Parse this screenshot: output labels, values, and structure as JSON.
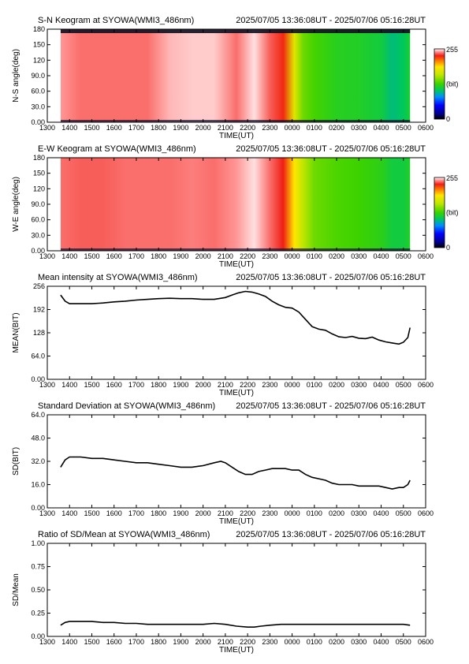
{
  "chart_data": [
    {
      "type": "heatmap",
      "title": "S-N Keogram at SYOWA(WMI3_486nm)",
      "time_range": "2025/07/05 13:36:08UT - 2025/07/06 05:16:28UT",
      "xlabel": "TIME(UT)",
      "ylabel": "N-S angle(deg)",
      "x_ticks": [
        "1300",
        "1400",
        "1500",
        "1600",
        "1700",
        "1800",
        "1900",
        "2000",
        "2100",
        "2200",
        "2300",
        "0000",
        "0100",
        "0200",
        "0300",
        "0400",
        "0500",
        "0600"
      ],
      "y_ticks": [
        "0.00",
        "30.0",
        "60.0",
        "90.0",
        "120",
        "150",
        "180"
      ],
      "ylim": [
        0,
        180
      ],
      "colorbar": {
        "max": "255",
        "unit": "(bit)",
        "min": "0"
      },
      "columns": [
        {
          "t": 13.6,
          "v": 245
        },
        {
          "t": 14.5,
          "v": 240
        },
        {
          "t": 15.5,
          "v": 240
        },
        {
          "t": 16.5,
          "v": 240
        },
        {
          "t": 17.5,
          "v": 240
        },
        {
          "t": 18.5,
          "v": 248
        },
        {
          "t": 19.5,
          "v": 250
        },
        {
          "t": 20.5,
          "v": 250
        },
        {
          "t": 21.5,
          "v": 240
        },
        {
          "t": 22.3,
          "v": 252
        },
        {
          "t": 23.0,
          "v": 238
        },
        {
          "t": 23.6,
          "v": 228
        },
        {
          "t": 24.1,
          "v": 175
        },
        {
          "t": 24.5,
          "v": 140
        },
        {
          "t": 25.0,
          "v": 130
        },
        {
          "t": 26.0,
          "v": 120
        },
        {
          "t": 27.0,
          "v": 118
        },
        {
          "t": 28.0,
          "v": 112
        },
        {
          "t": 28.5,
          "v": 100
        },
        {
          "t": 29.0,
          "v": 105
        },
        {
          "t": 29.3,
          "v": 115
        }
      ]
    },
    {
      "type": "heatmap",
      "title": "E-W Keogram at SYOWA(WMI3_486nm)",
      "time_range": "2025/07/05 13:36:08UT - 2025/07/06 05:16:28UT",
      "xlabel": "TIME(UT)",
      "ylabel": "W-E angle(deg)",
      "x_ticks": [
        "1300",
        "1400",
        "1500",
        "1600",
        "1700",
        "1800",
        "1900",
        "2000",
        "2100",
        "2200",
        "2300",
        "0000",
        "0100",
        "0200",
        "0300",
        "0400",
        "0500",
        "0600"
      ],
      "y_ticks": [
        "0.00",
        "30.0",
        "60.0",
        "90.0",
        "120",
        "150",
        "180"
      ],
      "ylim": [
        0,
        180
      ],
      "colorbar": {
        "max": "255",
        "unit": "(bit)",
        "min": "0"
      },
      "columns": [
        {
          "t": 13.6,
          "v": 240
        },
        {
          "t": 14.5,
          "v": 238
        },
        {
          "t": 15.5,
          "v": 238
        },
        {
          "t": 16.5,
          "v": 240
        },
        {
          "t": 17.5,
          "v": 240
        },
        {
          "t": 18.5,
          "v": 240
        },
        {
          "t": 19.5,
          "v": 242
        },
        {
          "t": 20.5,
          "v": 240
        },
        {
          "t": 21.5,
          "v": 245
        },
        {
          "t": 22.3,
          "v": 252
        },
        {
          "t": 23.0,
          "v": 240
        },
        {
          "t": 23.6,
          "v": 230
        },
        {
          "t": 24.1,
          "v": 190
        },
        {
          "t": 24.5,
          "v": 160
        },
        {
          "t": 25.0,
          "v": 140
        },
        {
          "t": 26.0,
          "v": 132
        },
        {
          "t": 27.0,
          "v": 128
        },
        {
          "t": 28.0,
          "v": 122
        },
        {
          "t": 28.5,
          "v": 112
        },
        {
          "t": 29.0,
          "v": 112
        },
        {
          "t": 29.3,
          "v": 118
        }
      ]
    },
    {
      "type": "line",
      "title": "Mean intensity at SYOWA(WMI3_486nm)",
      "time_range": "2025/07/05 13:36:08UT - 2025/07/06 05:16:28UT",
      "xlabel": "TIME(UT)",
      "ylabel": "MEAN(BIT)",
      "x_ticks": [
        "1300",
        "1400",
        "1500",
        "1600",
        "1700",
        "1800",
        "1900",
        "2000",
        "2100",
        "2200",
        "2300",
        "0000",
        "0100",
        "0200",
        "0300",
        "0400",
        "0500",
        "0600"
      ],
      "y_ticks": [
        "0.00",
        "64.0",
        "128",
        "192",
        "256"
      ],
      "ylim": [
        0,
        256
      ],
      "series": [
        {
          "x": [
            13.6,
            13.8,
            14.0,
            14.5,
            15.0,
            15.5,
            16.0,
            16.5,
            17.0,
            17.5,
            18.0,
            18.5,
            19.0,
            19.5,
            20.0,
            20.5,
            21.0,
            21.3,
            21.6,
            21.9,
            22.2,
            22.5,
            22.8,
            23.1,
            23.4,
            23.7,
            24.0,
            24.3,
            24.6,
            24.9,
            25.2,
            25.5,
            25.8,
            26.1,
            26.4,
            26.7,
            27.0,
            27.3,
            27.6,
            27.9,
            28.2,
            28.5,
            28.8,
            29.0,
            29.2,
            29.3
          ],
          "y": [
            232,
            215,
            208,
            208,
            208,
            210,
            213,
            215,
            218,
            220,
            222,
            223,
            222,
            222,
            220,
            220,
            225,
            232,
            238,
            242,
            240,
            235,
            228,
            215,
            205,
            198,
            196,
            185,
            165,
            145,
            138,
            135,
            125,
            117,
            115,
            118,
            113,
            112,
            116,
            108,
            103,
            100,
            97,
            102,
            115,
            142
          ]
        }
      ]
    },
    {
      "type": "line",
      "title": "Standard Deviation at SYOWA(WMI3_486nm)",
      "time_range": "2025/07/05 13:36:08UT - 2025/07/06 05:16:28UT",
      "xlabel": "TIME(UT)",
      "ylabel": "SD(BIT)",
      "x_ticks": [
        "1300",
        "1400",
        "1500",
        "1600",
        "1700",
        "1800",
        "1900",
        "2000",
        "2100",
        "2200",
        "2300",
        "0000",
        "0100",
        "0200",
        "0300",
        "0400",
        "0500",
        "0600"
      ],
      "y_ticks": [
        "0.00",
        "16.0",
        "32.0",
        "48.0",
        "64.0"
      ],
      "ylim": [
        0,
        64
      ],
      "series": [
        {
          "x": [
            13.6,
            13.8,
            14.0,
            14.5,
            15.0,
            15.5,
            16.0,
            16.5,
            17.0,
            17.5,
            18.0,
            18.5,
            19.0,
            19.5,
            20.0,
            20.5,
            20.8,
            21.0,
            21.3,
            21.6,
            21.9,
            22.2,
            22.5,
            22.8,
            23.1,
            23.4,
            23.7,
            24.0,
            24.3,
            24.6,
            24.9,
            25.2,
            25.5,
            25.8,
            26.1,
            26.4,
            26.7,
            27.0,
            27.3,
            27.6,
            27.9,
            28.2,
            28.5,
            28.8,
            29.0,
            29.2,
            29.3
          ],
          "y": [
            28,
            33,
            35,
            35,
            34,
            34,
            33,
            32,
            31,
            31,
            30,
            29,
            28,
            28,
            29,
            31,
            32,
            31,
            28,
            25,
            23,
            23,
            25,
            26,
            27,
            27,
            27,
            26,
            26,
            23,
            21,
            20,
            19,
            17,
            16,
            16,
            16,
            15,
            15,
            15,
            15,
            14,
            13,
            14,
            14,
            16,
            19
          ]
        }
      ]
    },
    {
      "type": "line",
      "title": "Ratio of SD/Mean at SYOWA(WMI3_486nm)",
      "time_range": "2025/07/05 13:36:08UT - 2025/07/06 05:16:28UT",
      "xlabel": "TIME(UT)",
      "ylabel": "SD/Mean",
      "x_ticks": [
        "1300",
        "1400",
        "1500",
        "1600",
        "1700",
        "1800",
        "1900",
        "2000",
        "2100",
        "2200",
        "2300",
        "0000",
        "0100",
        "0200",
        "0300",
        "0400",
        "0500",
        "0600"
      ],
      "y_ticks": [
        "0.00",
        "0.25",
        "0.50",
        "0.75",
        "1.00"
      ],
      "ylim": [
        0,
        1
      ],
      "series": [
        {
          "x": [
            13.6,
            13.8,
            14.0,
            14.5,
            15.0,
            15.5,
            16.0,
            16.5,
            17.0,
            17.5,
            18.0,
            18.5,
            19.0,
            19.5,
            20.0,
            20.5,
            21.0,
            21.5,
            22.0,
            22.3,
            22.6,
            23.0,
            23.5,
            24.0,
            24.5,
            25.0,
            25.5,
            26.0,
            26.5,
            27.0,
            27.5,
            28.0,
            28.5,
            29.0,
            29.3
          ],
          "y": [
            0.12,
            0.15,
            0.16,
            0.16,
            0.16,
            0.15,
            0.15,
            0.14,
            0.14,
            0.13,
            0.13,
            0.13,
            0.13,
            0.13,
            0.13,
            0.14,
            0.13,
            0.11,
            0.1,
            0.1,
            0.11,
            0.12,
            0.13,
            0.13,
            0.13,
            0.13,
            0.13,
            0.13,
            0.13,
            0.13,
            0.13,
            0.13,
            0.13,
            0.13,
            0.12
          ]
        }
      ]
    }
  ]
}
